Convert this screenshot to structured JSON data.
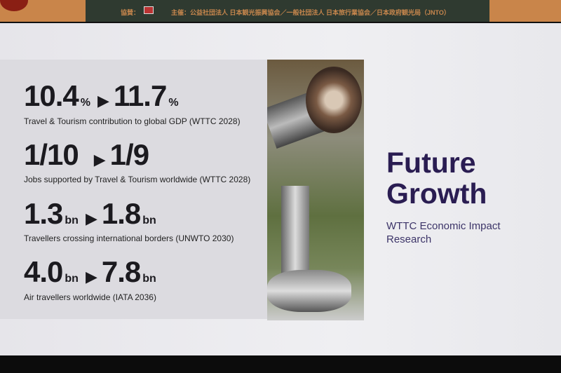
{
  "banner": {
    "sponsor_label": "協賛：",
    "organizers": "主催：公益社団法人 日本観光振興協会／一般社団法人 日本旅行業協会／日本政府観光局（JNTO）"
  },
  "slide": {
    "title_line1": "Future",
    "title_line2": "Growth",
    "subtitle": "WTTC Economic Impact Research",
    "stats": [
      {
        "from": "10.4",
        "from_unit": "%",
        "arrow": "▶",
        "to": "11.7",
        "to_unit": "%",
        "description": "Travel & Tourism contribution to global GDP (WTTC 2028)"
      },
      {
        "from": "1/10",
        "from_unit": "",
        "arrow": "▶",
        "to": "1/9",
        "to_unit": "",
        "description": "Jobs supported by Travel & Tourism worldwide (WTTC 2028)"
      },
      {
        "from": "1.3",
        "from_unit": "bn",
        "arrow": "▶",
        "to": "1.8",
        "to_unit": "bn",
        "description": "Travellers crossing international borders (UNWTO 2030)"
      },
      {
        "from": "4.0",
        "from_unit": "bn",
        "arrow": "▶",
        "to": "7.8",
        "to_unit": "bn",
        "description": "Air travellers worldwide (IATA 2036)"
      }
    ],
    "image_subject": "telescope-viewer-photo",
    "colors": {
      "title": "#2a1d52",
      "text": "#1b1a1f"
    }
  }
}
